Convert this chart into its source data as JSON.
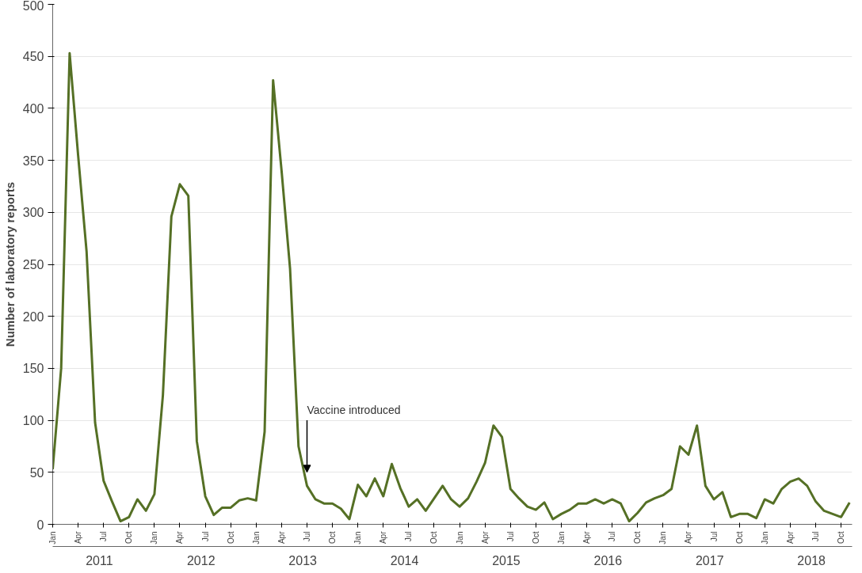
{
  "chart_data": {
    "type": "line",
    "ylabel": "Number of laboratory reports",
    "ylim": [
      0,
      500
    ],
    "yticks": [
      0,
      50,
      100,
      150,
      200,
      250,
      300,
      350,
      400,
      450,
      500
    ],
    "grid": "y",
    "xlim": [
      "2011-01",
      "2018-11"
    ],
    "xticks": [
      {
        "value": "2011-01",
        "label": "Jan"
      },
      {
        "value": "2011-04",
        "label": "Apr"
      },
      {
        "value": "2011-07",
        "label": "Jul"
      },
      {
        "value": "2011-10",
        "label": "Oct"
      },
      {
        "value": "2012-01",
        "label": "Jan"
      },
      {
        "value": "2012-04",
        "label": "Apr"
      },
      {
        "value": "2012-07",
        "label": "Jul"
      },
      {
        "value": "2012-10",
        "label": "Oct"
      },
      {
        "value": "2013-01",
        "label": "Jan"
      },
      {
        "value": "2013-04",
        "label": "Apr"
      },
      {
        "value": "2013-07",
        "label": "Jul"
      },
      {
        "value": "2013-10",
        "label": "Oct"
      },
      {
        "value": "2014-01",
        "label": "Jan"
      },
      {
        "value": "2014-04",
        "label": "Apr"
      },
      {
        "value": "2014-07",
        "label": "Jul"
      },
      {
        "value": "2014-10",
        "label": "Oct"
      },
      {
        "value": "2015-01",
        "label": "Jan"
      },
      {
        "value": "2015-04",
        "label": "Apr"
      },
      {
        "value": "2015-07",
        "label": "Jul"
      },
      {
        "value": "2015-10",
        "label": "Oct"
      },
      {
        "value": "2016-01",
        "label": "Jan"
      },
      {
        "value": "2016-04",
        "label": "Apr"
      },
      {
        "value": "2016-07",
        "label": "Jul"
      },
      {
        "value": "2016-10",
        "label": "Oct"
      },
      {
        "value": "2017-01",
        "label": "Jan"
      },
      {
        "value": "2017-04",
        "label": "Apr"
      },
      {
        "value": "2017-07",
        "label": "Jul"
      },
      {
        "value": "2017-10",
        "label": "Oct"
      },
      {
        "value": "2018-01",
        "label": "Jan"
      },
      {
        "value": "2018-04",
        "label": "Apr"
      },
      {
        "value": "2018-07",
        "label": "Jul"
      },
      {
        "value": "2018-10",
        "label": "Oct"
      }
    ],
    "x": [
      "2011-01",
      "2011-02",
      "2011-03",
      "2011-04",
      "2011-05",
      "2011-06",
      "2011-07",
      "2011-08",
      "2011-09",
      "2011-10",
      "2011-11",
      "2011-12",
      "2012-01",
      "2012-02",
      "2012-03",
      "2012-04",
      "2012-05",
      "2012-06",
      "2012-07",
      "2012-08",
      "2012-09",
      "2012-10",
      "2012-11",
      "2012-12",
      "2013-01",
      "2013-02",
      "2013-03",
      "2013-04",
      "2013-05",
      "2013-06",
      "2013-07",
      "2013-08",
      "2013-09",
      "2013-10",
      "2013-11",
      "2013-12",
      "2014-01",
      "2014-02",
      "2014-03",
      "2014-04",
      "2014-05",
      "2014-06",
      "2014-07",
      "2014-08",
      "2014-09",
      "2014-10",
      "2014-11",
      "2014-12",
      "2015-01",
      "2015-02",
      "2015-03",
      "2015-04",
      "2015-05",
      "2015-06",
      "2015-07",
      "2015-08",
      "2015-09",
      "2015-10",
      "2015-11",
      "2015-12",
      "2016-01",
      "2016-02",
      "2016-03",
      "2016-04",
      "2016-05",
      "2016-06",
      "2016-07",
      "2016-08",
      "2016-09",
      "2016-10",
      "2016-11",
      "2016-12",
      "2017-01",
      "2017-02",
      "2017-03",
      "2017-04",
      "2017-05",
      "2017-06",
      "2017-07",
      "2017-08",
      "2017-09",
      "2017-10",
      "2017-11",
      "2017-12",
      "2018-01",
      "2018-02",
      "2018-03",
      "2018-04",
      "2018-05",
      "2018-06",
      "2018-07",
      "2018-08",
      "2018-09",
      "2018-10",
      "2018-11"
    ],
    "series": [
      {
        "color": "#557025",
        "values": [
          53,
          150,
          453,
          355,
          262,
          98,
          42,
          22,
          3,
          7,
          24,
          13,
          29,
          124,
          296,
          327,
          316,
          80,
          27,
          9,
          16,
          16,
          23,
          25,
          23,
          89,
          427,
          340,
          246,
          75,
          37,
          24,
          20,
          20,
          15,
          5,
          38,
          27,
          44,
          27,
          58,
          35,
          17,
          24,
          13,
          25,
          37,
          24,
          17,
          25,
          41,
          59,
          95,
          84,
          34,
          25,
          17,
          14,
          21,
          5,
          10,
          14,
          20,
          20,
          24,
          20,
          24,
          20,
          3,
          11,
          21,
          25,
          28,
          34,
          75,
          67,
          95,
          37,
          24,
          31,
          7,
          10,
          10,
          6,
          24,
          20,
          34,
          41,
          44,
          37,
          22,
          13,
          10,
          7,
          21
        ]
      }
    ],
    "annotations": [
      {
        "text": "Vaccine introduced",
        "x": "2013-07",
        "y": 50
      },
      "2011",
      "2012",
      "2013",
      "2014",
      "2015",
      "2016",
      "2017",
      "2018"
    ]
  }
}
